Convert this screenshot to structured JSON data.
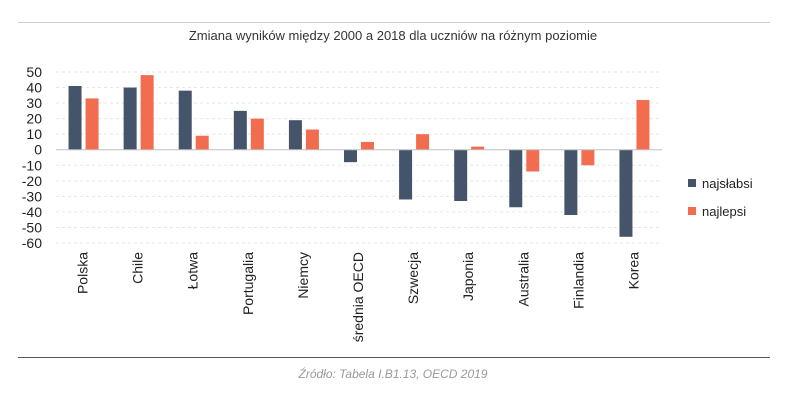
{
  "chart_data": {
    "type": "bar",
    "title": "Zmiana wyników między 2000 a 2018 dla uczniów na różnym poziomie",
    "source": "Źródło: Tabela I.B1.13, OECD 2019",
    "categories": [
      "Polska",
      "Chile",
      "Łotwa",
      "Portugalia",
      "Niemcy",
      "średnia OECD",
      "Szwecja",
      "Japonia",
      "Australia",
      "Finlandia",
      "Korea"
    ],
    "series": [
      {
        "name": "najsłabsi",
        "color": "#44546a",
        "values": [
          41,
          40,
          38,
          25,
          19,
          -8,
          -32,
          -33,
          -37,
          -42,
          -56
        ]
      },
      {
        "name": "najlepsi",
        "color": "#f26c4f",
        "values": [
          33,
          48,
          9,
          20,
          13,
          5,
          10,
          2,
          -14,
          -10,
          32
        ]
      }
    ],
    "ylim": [
      -60,
      50
    ],
    "yticks": [
      50,
      40,
      30,
      20,
      10,
      0,
      -10,
      -20,
      -30,
      -40,
      -50,
      -60
    ],
    "grid": true,
    "legend_position": "right"
  }
}
